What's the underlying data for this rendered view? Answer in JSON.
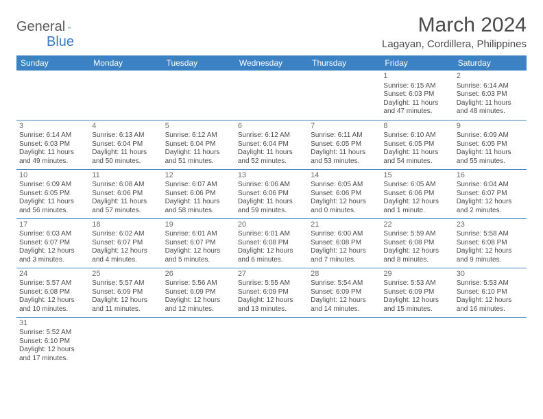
{
  "logo": {
    "part1": "General",
    "part2": "Blue"
  },
  "title": "March 2024",
  "subtitle": "Lagayan, Cordillera, Philippines",
  "colors": {
    "header_bg": "#3b82c4",
    "header_text": "#ffffff",
    "cell_border": "#3b82c4",
    "text": "#4a4a4a",
    "logo_gray": "#5a5a5a",
    "logo_blue": "#3b7bbf"
  },
  "weekdays": [
    "Sunday",
    "Monday",
    "Tuesday",
    "Wednesday",
    "Thursday",
    "Friday",
    "Saturday"
  ],
  "weeks": [
    [
      null,
      null,
      null,
      null,
      null,
      {
        "d": "1",
        "sr": "Sunrise: 6:15 AM",
        "ss": "Sunset: 6:03 PM",
        "dl1": "Daylight: 11 hours",
        "dl2": "and 47 minutes."
      },
      {
        "d": "2",
        "sr": "Sunrise: 6:14 AM",
        "ss": "Sunset: 6:03 PM",
        "dl1": "Daylight: 11 hours",
        "dl2": "and 48 minutes."
      }
    ],
    [
      {
        "d": "3",
        "sr": "Sunrise: 6:14 AM",
        "ss": "Sunset: 6:03 PM",
        "dl1": "Daylight: 11 hours",
        "dl2": "and 49 minutes."
      },
      {
        "d": "4",
        "sr": "Sunrise: 6:13 AM",
        "ss": "Sunset: 6:04 PM",
        "dl1": "Daylight: 11 hours",
        "dl2": "and 50 minutes."
      },
      {
        "d": "5",
        "sr": "Sunrise: 6:12 AM",
        "ss": "Sunset: 6:04 PM",
        "dl1": "Daylight: 11 hours",
        "dl2": "and 51 minutes."
      },
      {
        "d": "6",
        "sr": "Sunrise: 6:12 AM",
        "ss": "Sunset: 6:04 PM",
        "dl1": "Daylight: 11 hours",
        "dl2": "and 52 minutes."
      },
      {
        "d": "7",
        "sr": "Sunrise: 6:11 AM",
        "ss": "Sunset: 6:05 PM",
        "dl1": "Daylight: 11 hours",
        "dl2": "and 53 minutes."
      },
      {
        "d": "8",
        "sr": "Sunrise: 6:10 AM",
        "ss": "Sunset: 6:05 PM",
        "dl1": "Daylight: 11 hours",
        "dl2": "and 54 minutes."
      },
      {
        "d": "9",
        "sr": "Sunrise: 6:09 AM",
        "ss": "Sunset: 6:05 PM",
        "dl1": "Daylight: 11 hours",
        "dl2": "and 55 minutes."
      }
    ],
    [
      {
        "d": "10",
        "sr": "Sunrise: 6:09 AM",
        "ss": "Sunset: 6:05 PM",
        "dl1": "Daylight: 11 hours",
        "dl2": "and 56 minutes."
      },
      {
        "d": "11",
        "sr": "Sunrise: 6:08 AM",
        "ss": "Sunset: 6:06 PM",
        "dl1": "Daylight: 11 hours",
        "dl2": "and 57 minutes."
      },
      {
        "d": "12",
        "sr": "Sunrise: 6:07 AM",
        "ss": "Sunset: 6:06 PM",
        "dl1": "Daylight: 11 hours",
        "dl2": "and 58 minutes."
      },
      {
        "d": "13",
        "sr": "Sunrise: 6:06 AM",
        "ss": "Sunset: 6:06 PM",
        "dl1": "Daylight: 11 hours",
        "dl2": "and 59 minutes."
      },
      {
        "d": "14",
        "sr": "Sunrise: 6:05 AM",
        "ss": "Sunset: 6:06 PM",
        "dl1": "Daylight: 12 hours",
        "dl2": "and 0 minutes."
      },
      {
        "d": "15",
        "sr": "Sunrise: 6:05 AM",
        "ss": "Sunset: 6:06 PM",
        "dl1": "Daylight: 12 hours",
        "dl2": "and 1 minute."
      },
      {
        "d": "16",
        "sr": "Sunrise: 6:04 AM",
        "ss": "Sunset: 6:07 PM",
        "dl1": "Daylight: 12 hours",
        "dl2": "and 2 minutes."
      }
    ],
    [
      {
        "d": "17",
        "sr": "Sunrise: 6:03 AM",
        "ss": "Sunset: 6:07 PM",
        "dl1": "Daylight: 12 hours",
        "dl2": "and 3 minutes."
      },
      {
        "d": "18",
        "sr": "Sunrise: 6:02 AM",
        "ss": "Sunset: 6:07 PM",
        "dl1": "Daylight: 12 hours",
        "dl2": "and 4 minutes."
      },
      {
        "d": "19",
        "sr": "Sunrise: 6:01 AM",
        "ss": "Sunset: 6:07 PM",
        "dl1": "Daylight: 12 hours",
        "dl2": "and 5 minutes."
      },
      {
        "d": "20",
        "sr": "Sunrise: 6:01 AM",
        "ss": "Sunset: 6:08 PM",
        "dl1": "Daylight: 12 hours",
        "dl2": "and 6 minutes."
      },
      {
        "d": "21",
        "sr": "Sunrise: 6:00 AM",
        "ss": "Sunset: 6:08 PM",
        "dl1": "Daylight: 12 hours",
        "dl2": "and 7 minutes."
      },
      {
        "d": "22",
        "sr": "Sunrise: 5:59 AM",
        "ss": "Sunset: 6:08 PM",
        "dl1": "Daylight: 12 hours",
        "dl2": "and 8 minutes."
      },
      {
        "d": "23",
        "sr": "Sunrise: 5:58 AM",
        "ss": "Sunset: 6:08 PM",
        "dl1": "Daylight: 12 hours",
        "dl2": "and 9 minutes."
      }
    ],
    [
      {
        "d": "24",
        "sr": "Sunrise: 5:57 AM",
        "ss": "Sunset: 6:08 PM",
        "dl1": "Daylight: 12 hours",
        "dl2": "and 10 minutes."
      },
      {
        "d": "25",
        "sr": "Sunrise: 5:57 AM",
        "ss": "Sunset: 6:09 PM",
        "dl1": "Daylight: 12 hours",
        "dl2": "and 11 minutes."
      },
      {
        "d": "26",
        "sr": "Sunrise: 5:56 AM",
        "ss": "Sunset: 6:09 PM",
        "dl1": "Daylight: 12 hours",
        "dl2": "and 12 minutes."
      },
      {
        "d": "27",
        "sr": "Sunrise: 5:55 AM",
        "ss": "Sunset: 6:09 PM",
        "dl1": "Daylight: 12 hours",
        "dl2": "and 13 minutes."
      },
      {
        "d": "28",
        "sr": "Sunrise: 5:54 AM",
        "ss": "Sunset: 6:09 PM",
        "dl1": "Daylight: 12 hours",
        "dl2": "and 14 minutes."
      },
      {
        "d": "29",
        "sr": "Sunrise: 5:53 AM",
        "ss": "Sunset: 6:09 PM",
        "dl1": "Daylight: 12 hours",
        "dl2": "and 15 minutes."
      },
      {
        "d": "30",
        "sr": "Sunrise: 5:53 AM",
        "ss": "Sunset: 6:10 PM",
        "dl1": "Daylight: 12 hours",
        "dl2": "and 16 minutes."
      }
    ],
    [
      {
        "d": "31",
        "sr": "Sunrise: 5:52 AM",
        "ss": "Sunset: 6:10 PM",
        "dl1": "Daylight: 12 hours",
        "dl2": "and 17 minutes."
      },
      null,
      null,
      null,
      null,
      null,
      null
    ]
  ]
}
